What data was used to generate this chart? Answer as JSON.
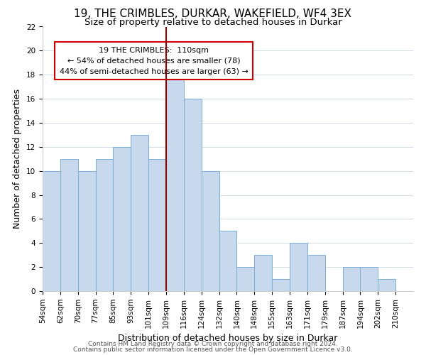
{
  "title": "19, THE CRIMBLES, DURKAR, WAKEFIELD, WF4 3EX",
  "subtitle": "Size of property relative to detached houses in Durkar",
  "xlabel": "Distribution of detached houses by size in Durkar",
  "ylabel": "Number of detached properties",
  "bin_labels": [
    "54sqm",
    "62sqm",
    "70sqm",
    "77sqm",
    "85sqm",
    "93sqm",
    "101sqm",
    "109sqm",
    "116sqm",
    "124sqm",
    "132sqm",
    "140sqm",
    "148sqm",
    "155sqm",
    "163sqm",
    "171sqm",
    "179sqm",
    "187sqm",
    "194sqm",
    "202sqm",
    "210sqm"
  ],
  "bar_heights": [
    10,
    11,
    10,
    11,
    12,
    13,
    11,
    18,
    16,
    10,
    5,
    2,
    3,
    1,
    4,
    3,
    0,
    2,
    2,
    1,
    0
  ],
  "bar_color": "#c8d9ee",
  "bar_edge_color": "#7bafd4",
  "highlight_bar_index": 7,
  "highlight_line_color": "#990000",
  "annotation_title": "19 THE CRIMBLES:  110sqm",
  "annotation_line1": "← 54% of detached houses are smaller (78)",
  "annotation_line2": "44% of semi-detached houses are larger (63) →",
  "annotation_box_color": "#ffffff",
  "annotation_box_edge": "#cc0000",
  "ylim": [
    0,
    22
  ],
  "yticks": [
    0,
    2,
    4,
    6,
    8,
    10,
    12,
    14,
    16,
    18,
    20,
    22
  ],
  "footer1": "Contains HM Land Registry data © Crown copyright and database right 2024.",
  "footer2": "Contains public sector information licensed under the Open Government Licence v3.0.",
  "bg_color": "#ffffff",
  "grid_color": "#d0dce8",
  "title_fontsize": 11,
  "subtitle_fontsize": 9.5,
  "axis_label_fontsize": 9,
  "tick_fontsize": 7.5,
  "footer_fontsize": 6.5
}
